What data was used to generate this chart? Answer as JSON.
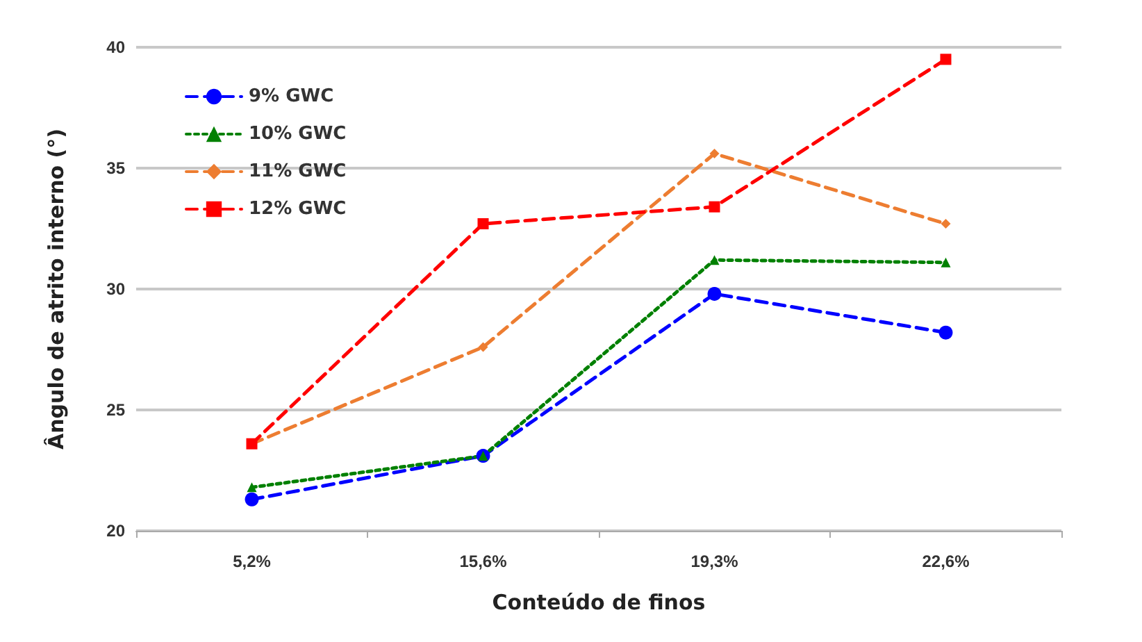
{
  "chart_data": {
    "type": "line",
    "xlabel": "Conteúdo de finos",
    "ylabel": "Ângulo de atrito interno (°)",
    "categories": [
      "5,2%",
      "15,6%",
      "19,3%",
      "22,6%"
    ],
    "series": [
      {
        "name": "9% GWC",
        "color": "#0000ff",
        "marker": "circle",
        "line_style": "dashed",
        "values": [
          21.3,
          23.1,
          29.8,
          28.2
        ]
      },
      {
        "name": "10% GWC",
        "color": "#008000",
        "marker": "triangle",
        "line_style": "dotted",
        "values": [
          21.8,
          23.1,
          31.2,
          31.1
        ]
      },
      {
        "name": "11% GWC",
        "color": "#ed7d31",
        "marker": "diamond",
        "line_style": "dashed",
        "values": [
          23.6,
          27.6,
          35.6,
          32.7
        ]
      },
      {
        "name": "12% GWC",
        "color": "#ff0000",
        "marker": "square",
        "line_style": "dashed",
        "values": [
          23.6,
          32.7,
          33.4,
          39.5
        ]
      }
    ],
    "ylim": [
      20,
      40
    ],
    "yticks": [
      20,
      25,
      30,
      35,
      40
    ],
    "grid": "y",
    "legend": "top left"
  }
}
